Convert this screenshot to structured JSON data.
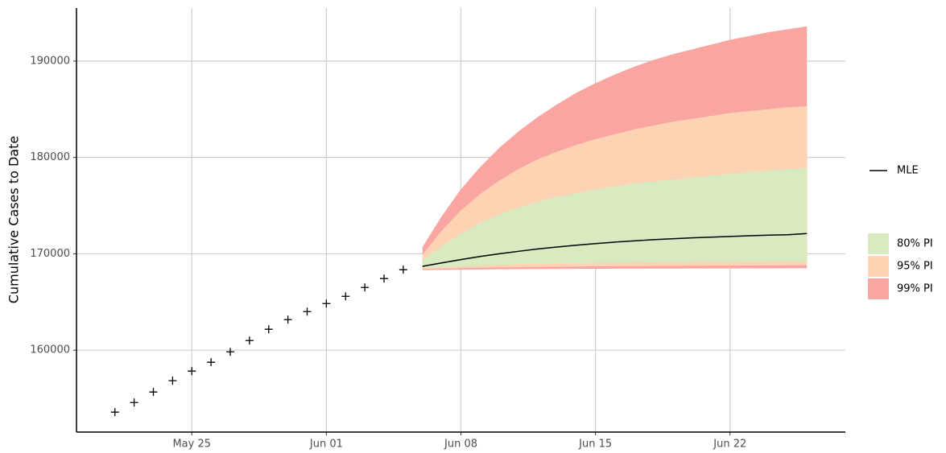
{
  "chart_data": {
    "type": "line",
    "y_label": "Cumulative Cases to Date",
    "xlim": [
      "May 19",
      "Jun 28"
    ],
    "xticks": [
      "May 25",
      "Jun 01",
      "Jun 08",
      "Jun 15",
      "Jun 22"
    ],
    "ylim": [
      151500,
      195500
    ],
    "yticks": [
      160000,
      170000,
      180000,
      190000
    ],
    "grid": true,
    "observed": {
      "color": "#000000",
      "x": [
        "May 21",
        "May 22",
        "May 23",
        "May 24",
        "May 25",
        "May 26",
        "May 27",
        "May 28",
        "May 29",
        "May 30",
        "May 31",
        "Jun 01",
        "Jun 02",
        "Jun 03",
        "Jun 04",
        "Jun 05"
      ],
      "values": [
        153570,
        154570,
        155660,
        156830,
        157830,
        158750,
        159830,
        161000,
        162170,
        163170,
        164000,
        164840,
        165590,
        166510,
        167430,
        168350
      ]
    },
    "forecast": {
      "x": [
        "Jun 06",
        "Jun 07",
        "Jun 08",
        "Jun 09",
        "Jun 10",
        "Jun 11",
        "Jun 12",
        "Jun 13",
        "Jun 14",
        "Jun 15",
        "Jun 16",
        "Jun 17",
        "Jun 18",
        "Jun 19",
        "Jun 20",
        "Jun 21",
        "Jun 22",
        "Jun 23",
        "Jun 24",
        "Jun 25",
        "Jun 26"
      ],
      "mle": {
        "name": "MLE",
        "color": "#000000",
        "values": [
          168700,
          169050,
          169400,
          169720,
          170000,
          170260,
          170500,
          170700,
          170890,
          171060,
          171210,
          171340,
          171460,
          171560,
          171650,
          171730,
          171800,
          171870,
          171930,
          171980,
          172100
        ]
      },
      "intervals": [
        {
          "name": "80% PI",
          "color": "#d9eac0",
          "lower": [
            168500,
            168600,
            168700,
            168780,
            168850,
            168900,
            168950,
            168990,
            169020,
            169050,
            169080,
            169100,
            169120,
            169140,
            169150,
            169160,
            169170,
            169180,
            169190,
            169195,
            169200
          ],
          "upper": [
            169300,
            170800,
            172100,
            173200,
            174100,
            174800,
            175400,
            175900,
            176300,
            176700,
            177000,
            177300,
            177500,
            177700,
            177900,
            178100,
            178300,
            178500,
            178600,
            178800,
            178900
          ]
        },
        {
          "name": "95% PI",
          "color": "#fdd3b3",
          "lower": [
            168400,
            168450,
            168500,
            168540,
            168580,
            168610,
            168640,
            168660,
            168680,
            168700,
            168710,
            168720,
            168730,
            168740,
            168750,
            168760,
            168770,
            168780,
            168790,
            168795,
            168800
          ],
          "upper": [
            169900,
            172400,
            174500,
            176200,
            177600,
            178800,
            179800,
            180600,
            181300,
            181900,
            182400,
            182900,
            183300,
            183700,
            184000,
            184300,
            184600,
            184800,
            185000,
            185200,
            185300
          ]
        },
        {
          "name": "99% PI",
          "color": "#f9a6a3",
          "lower": [
            168300,
            168330,
            168360,
            168380,
            168400,
            168410,
            168420,
            168430,
            168440,
            168450,
            168455,
            168460,
            168465,
            168470,
            168475,
            168480,
            168485,
            168490,
            168493,
            168497,
            168500
          ],
          "upper": [
            170700,
            173900,
            176700,
            179000,
            181000,
            182700,
            184200,
            185500,
            186700,
            187700,
            188600,
            189400,
            190100,
            190700,
            191200,
            191700,
            192200,
            192600,
            193000,
            193300,
            193600
          ]
        }
      ]
    }
  }
}
